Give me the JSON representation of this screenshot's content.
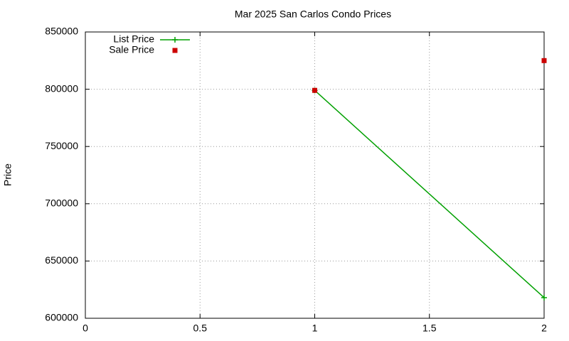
{
  "chart_data": {
    "type": "line",
    "title": "Mar 2025 San Carlos Condo Prices",
    "y_label": "Price",
    "x": [
      1,
      2
    ],
    "series": [
      {
        "name": "List Price",
        "color": "#00a000",
        "style": "linespoints",
        "values": [
          799000,
          618000
        ]
      },
      {
        "name": "Sale Price",
        "color": "#cc0000",
        "style": "points",
        "values": [
          799000,
          825000
        ]
      }
    ],
    "xlim": [
      0,
      2
    ],
    "xticks": [
      0,
      0.5,
      1,
      1.5,
      2
    ],
    "ylim": [
      600000,
      850000
    ],
    "yticks": [
      600000,
      650000,
      700000,
      750000,
      800000,
      850000
    ],
    "grid": true,
    "legend": "top-left"
  }
}
